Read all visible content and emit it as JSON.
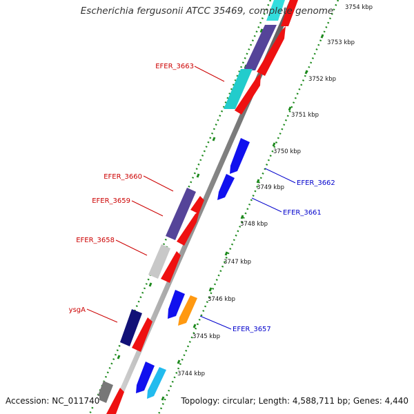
{
  "title": "Escherichia fergusonii ATCC 35469, complete genome",
  "footer": {
    "accession": "Accession: NC_011740",
    "summary": "Topology: circular; Length: 4,588,711 bp; Genes: 4,440"
  },
  "colors": {
    "background": "#ffffff",
    "backbone": "#9a9a9a",
    "tick_dots": "#1e8a1e",
    "label_forward": "#cc0000",
    "label_reverse": "#0000cc"
  },
  "scale_labels": [
    "3744 kbp",
    "3745 kbp",
    "3746 kbp",
    "3747 kbp",
    "3748 kbp",
    "3749 kbp",
    "3750 kbp",
    "3751 kbp",
    "3752 kbp",
    "3753 kbp",
    "3754 kbp"
  ],
  "gene_labels_forward": [
    "EFER_3663",
    "EFER_3660",
    "EFER_3659",
    "EFER_3658",
    "ysgA"
  ],
  "gene_labels_reverse": [
    "EFER_3662",
    "EFER_3661",
    "EFER_3657"
  ]
}
